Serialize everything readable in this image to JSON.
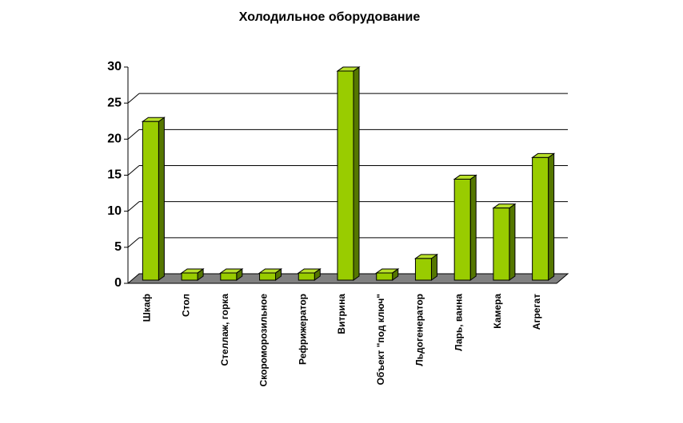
{
  "chart_data": {
    "type": "bar",
    "title": "Холодильное оборудование",
    "categories": [
      "Шкаф",
      "Стол",
      "Стеллаж, горка",
      "Скоромороз­ильное",
      "Рефрижератор",
      "Витрина",
      "Объект \"под ключ\"",
      "Льдогенератор",
      "Ларь, ванна",
      "Камера",
      "Агрегат"
    ],
    "values": [
      22,
      1,
      1,
      1,
      1,
      29,
      1,
      3,
      14,
      10,
      17
    ],
    "color": "#99cc00",
    "ylim": [
      0,
      30
    ],
    "yticks": [
      0,
      5,
      10,
      15,
      20,
      25,
      30
    ],
    "grid": true
  }
}
